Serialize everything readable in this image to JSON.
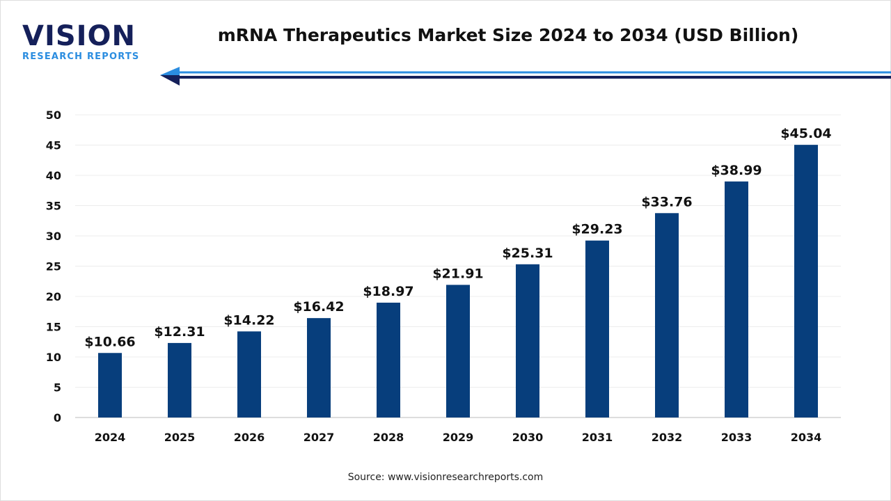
{
  "brand": {
    "logo_main": "VISION",
    "logo_sub": "RESEARCH REPORTS",
    "primary": "#15205a",
    "accent": "#2b8de0"
  },
  "source": "Source: www.visionresearchreports.com",
  "chart_data": {
    "type": "bar",
    "title": "mRNA Therapeutics Market Size 2024 to 2034 (USD Billion)",
    "categories": [
      "2024",
      "2025",
      "2026",
      "2027",
      "2028",
      "2029",
      "2030",
      "2031",
      "2032",
      "2033",
      "2034"
    ],
    "values": [
      10.66,
      12.31,
      14.22,
      16.42,
      18.97,
      21.91,
      25.31,
      29.23,
      33.76,
      38.99,
      45.04
    ],
    "data_labels": [
      "$10.66",
      "$12.31",
      "$14.22",
      "$16.42",
      "$18.97",
      "$21.91",
      "$25.31",
      "$29.23",
      "$33.76",
      "$38.99",
      "$45.04"
    ],
    "yticks": [
      0,
      5,
      10,
      15,
      20,
      25,
      30,
      35,
      40,
      45,
      50
    ],
    "ylim": [
      0,
      50
    ],
    "xlabel": "",
    "ylabel": "",
    "grid": true,
    "bar_color": "#073e7c"
  }
}
